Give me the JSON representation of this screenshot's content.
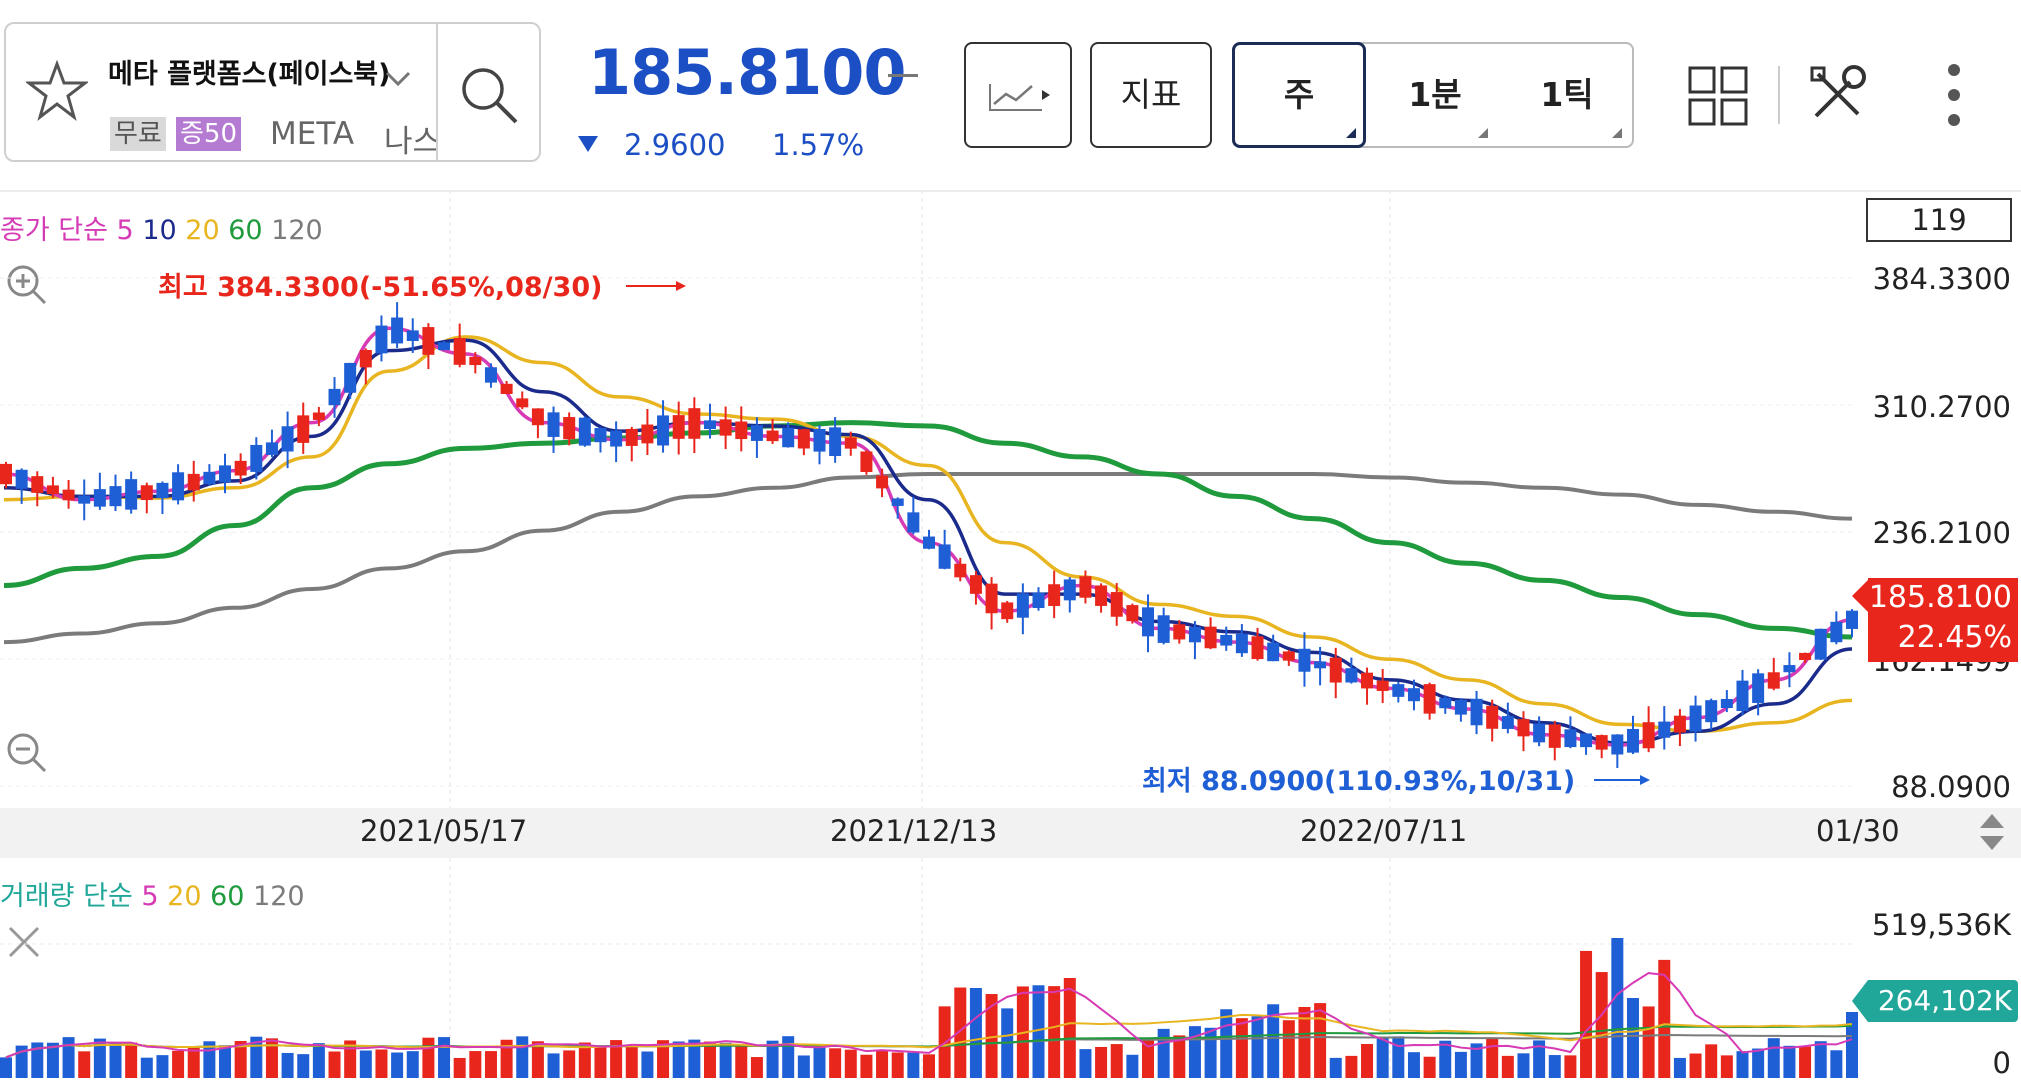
{
  "header": {
    "stock_name": "메타 플랫폼스(페이스북)",
    "tag_free": "무료",
    "tag_margin": "증50",
    "ticker": "META",
    "exchange": "나스닥",
    "price": "185.8100",
    "change": "2.9600",
    "change_rate": "1.57%",
    "indicator_label": "지표",
    "periods": [
      "주",
      "1분",
      "1틱"
    ],
    "active_period": "주"
  },
  "chart": {
    "ma_legend": {
      "prefix": "종가 단순",
      "periods": [
        "5",
        "10",
        "20",
        "60",
        "120"
      ]
    },
    "vol_legend": {
      "prefix": "거래량 단순",
      "periods": [
        "5",
        "20",
        "60",
        "120"
      ]
    },
    "visible_count": "119",
    "y_labels": [
      "384.3300",
      "310.2700",
      "236.2100",
      "162.1499",
      "88.0900"
    ],
    "current_price_tag": "185.8100",
    "current_rate_tag": "22.45%",
    "high_annotation": "최고 384.3300(-51.65%,08/30)",
    "low_annotation": "최저 88.0900(110.93%,10/31)",
    "date_labels": [
      "2021/05/17",
      "2021/12/13",
      "2022/07/11",
      "01/30"
    ],
    "volume_top_label": "519,536K",
    "volume_tag": "264,102K",
    "volume_zero": "0"
  },
  "colors": {
    "up": "#e8261c",
    "down": "#1f5fd6",
    "ma5": "#d63ab5",
    "ma10": "#1a2b8c",
    "ma20": "#e8b521",
    "ma60": "#1f9a3c",
    "ma120": "#7b7b7b",
    "price_blue": "#1d4fc4",
    "volume_tag": "#21a79a"
  },
  "chart_data": {
    "type": "candlestick",
    "ylim": [
      88.09,
      384.33
    ],
    "x_labels": [
      "2021/05/17",
      "2021/12/13",
      "2022/07/11",
      "01/30"
    ],
    "ma_levels": {
      "ma5": [
        270,
        255,
        260,
        272,
        300,
        355,
        340,
        300,
        290,
        300,
        292,
        288,
        230,
        190,
        205,
        180,
        172,
        160,
        145,
        133,
        118,
        112,
        128,
        150,
        185
      ],
      "ma10": [
        262,
        257,
        257,
        266,
        292,
        342,
        348,
        318,
        295,
        300,
        298,
        293,
        255,
        200,
        200,
        184,
        178,
        166,
        150,
        138,
        125,
        113,
        120,
        136,
        168
      ],
      "ma20": [
        255,
        257,
        256,
        262,
        280,
        330,
        350,
        335,
        315,
        305,
        302,
        292,
        275,
        230,
        210,
        194,
        187,
        175,
        162,
        150,
        136,
        124,
        120,
        125,
        138
      ],
      "ma60": [
        205,
        215,
        222,
        240,
        262,
        276,
        285,
        288,
        291,
        294,
        298,
        300,
        298,
        288,
        280,
        270,
        257,
        244,
        230,
        218,
        208,
        198,
        188,
        180,
        175
      ],
      "ma120": [
        172,
        177,
        183,
        192,
        203,
        215,
        225,
        237,
        248,
        257,
        262,
        268,
        270,
        270,
        270,
        270,
        270,
        270,
        268,
        265,
        262,
        258,
        252,
        248,
        244
      ]
    },
    "volume_peak": "519,536K",
    "volume_last": "264,102K"
  }
}
